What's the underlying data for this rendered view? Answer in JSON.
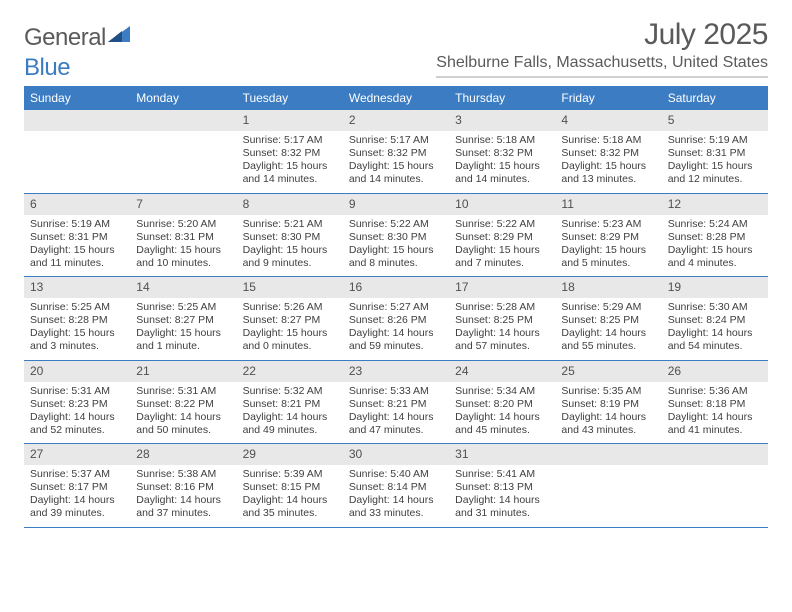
{
  "logo": {
    "word1": "General",
    "word2": "Blue"
  },
  "title": "July 2025",
  "location": "Shelburne Falls, Massachusetts, United States",
  "header_bg_color": "#3c7cc2",
  "daynum_bg_color": "#e8e8e8",
  "day_headers": [
    "Sunday",
    "Monday",
    "Tuesday",
    "Wednesday",
    "Thursday",
    "Friday",
    "Saturday"
  ],
  "weeks": [
    [
      null,
      null,
      {
        "n": "1",
        "sunrise": "Sunrise: 5:17 AM",
        "sunset": "Sunset: 8:32 PM",
        "day1": "Daylight: 15 hours",
        "day2": "and 14 minutes."
      },
      {
        "n": "2",
        "sunrise": "Sunrise: 5:17 AM",
        "sunset": "Sunset: 8:32 PM",
        "day1": "Daylight: 15 hours",
        "day2": "and 14 minutes."
      },
      {
        "n": "3",
        "sunrise": "Sunrise: 5:18 AM",
        "sunset": "Sunset: 8:32 PM",
        "day1": "Daylight: 15 hours",
        "day2": "and 14 minutes."
      },
      {
        "n": "4",
        "sunrise": "Sunrise: 5:18 AM",
        "sunset": "Sunset: 8:32 PM",
        "day1": "Daylight: 15 hours",
        "day2": "and 13 minutes."
      },
      {
        "n": "5",
        "sunrise": "Sunrise: 5:19 AM",
        "sunset": "Sunset: 8:31 PM",
        "day1": "Daylight: 15 hours",
        "day2": "and 12 minutes."
      }
    ],
    [
      {
        "n": "6",
        "sunrise": "Sunrise: 5:19 AM",
        "sunset": "Sunset: 8:31 PM",
        "day1": "Daylight: 15 hours",
        "day2": "and 11 minutes."
      },
      {
        "n": "7",
        "sunrise": "Sunrise: 5:20 AM",
        "sunset": "Sunset: 8:31 PM",
        "day1": "Daylight: 15 hours",
        "day2": "and 10 minutes."
      },
      {
        "n": "8",
        "sunrise": "Sunrise: 5:21 AM",
        "sunset": "Sunset: 8:30 PM",
        "day1": "Daylight: 15 hours",
        "day2": "and 9 minutes."
      },
      {
        "n": "9",
        "sunrise": "Sunrise: 5:22 AM",
        "sunset": "Sunset: 8:30 PM",
        "day1": "Daylight: 15 hours",
        "day2": "and 8 minutes."
      },
      {
        "n": "10",
        "sunrise": "Sunrise: 5:22 AM",
        "sunset": "Sunset: 8:29 PM",
        "day1": "Daylight: 15 hours",
        "day2": "and 7 minutes."
      },
      {
        "n": "11",
        "sunrise": "Sunrise: 5:23 AM",
        "sunset": "Sunset: 8:29 PM",
        "day1": "Daylight: 15 hours",
        "day2": "and 5 minutes."
      },
      {
        "n": "12",
        "sunrise": "Sunrise: 5:24 AM",
        "sunset": "Sunset: 8:28 PM",
        "day1": "Daylight: 15 hours",
        "day2": "and 4 minutes."
      }
    ],
    [
      {
        "n": "13",
        "sunrise": "Sunrise: 5:25 AM",
        "sunset": "Sunset: 8:28 PM",
        "day1": "Daylight: 15 hours",
        "day2": "and 3 minutes."
      },
      {
        "n": "14",
        "sunrise": "Sunrise: 5:25 AM",
        "sunset": "Sunset: 8:27 PM",
        "day1": "Daylight: 15 hours",
        "day2": "and 1 minute."
      },
      {
        "n": "15",
        "sunrise": "Sunrise: 5:26 AM",
        "sunset": "Sunset: 8:27 PM",
        "day1": "Daylight: 15 hours",
        "day2": "and 0 minutes."
      },
      {
        "n": "16",
        "sunrise": "Sunrise: 5:27 AM",
        "sunset": "Sunset: 8:26 PM",
        "day1": "Daylight: 14 hours",
        "day2": "and 59 minutes."
      },
      {
        "n": "17",
        "sunrise": "Sunrise: 5:28 AM",
        "sunset": "Sunset: 8:25 PM",
        "day1": "Daylight: 14 hours",
        "day2": "and 57 minutes."
      },
      {
        "n": "18",
        "sunrise": "Sunrise: 5:29 AM",
        "sunset": "Sunset: 8:25 PM",
        "day1": "Daylight: 14 hours",
        "day2": "and 55 minutes."
      },
      {
        "n": "19",
        "sunrise": "Sunrise: 5:30 AM",
        "sunset": "Sunset: 8:24 PM",
        "day1": "Daylight: 14 hours",
        "day2": "and 54 minutes."
      }
    ],
    [
      {
        "n": "20",
        "sunrise": "Sunrise: 5:31 AM",
        "sunset": "Sunset: 8:23 PM",
        "day1": "Daylight: 14 hours",
        "day2": "and 52 minutes."
      },
      {
        "n": "21",
        "sunrise": "Sunrise: 5:31 AM",
        "sunset": "Sunset: 8:22 PM",
        "day1": "Daylight: 14 hours",
        "day2": "and 50 minutes."
      },
      {
        "n": "22",
        "sunrise": "Sunrise: 5:32 AM",
        "sunset": "Sunset: 8:21 PM",
        "day1": "Daylight: 14 hours",
        "day2": "and 49 minutes."
      },
      {
        "n": "23",
        "sunrise": "Sunrise: 5:33 AM",
        "sunset": "Sunset: 8:21 PM",
        "day1": "Daylight: 14 hours",
        "day2": "and 47 minutes."
      },
      {
        "n": "24",
        "sunrise": "Sunrise: 5:34 AM",
        "sunset": "Sunset: 8:20 PM",
        "day1": "Daylight: 14 hours",
        "day2": "and 45 minutes."
      },
      {
        "n": "25",
        "sunrise": "Sunrise: 5:35 AM",
        "sunset": "Sunset: 8:19 PM",
        "day1": "Daylight: 14 hours",
        "day2": "and 43 minutes."
      },
      {
        "n": "26",
        "sunrise": "Sunrise: 5:36 AM",
        "sunset": "Sunset: 8:18 PM",
        "day1": "Daylight: 14 hours",
        "day2": "and 41 minutes."
      }
    ],
    [
      {
        "n": "27",
        "sunrise": "Sunrise: 5:37 AM",
        "sunset": "Sunset: 8:17 PM",
        "day1": "Daylight: 14 hours",
        "day2": "and 39 minutes."
      },
      {
        "n": "28",
        "sunrise": "Sunrise: 5:38 AM",
        "sunset": "Sunset: 8:16 PM",
        "day1": "Daylight: 14 hours",
        "day2": "and 37 minutes."
      },
      {
        "n": "29",
        "sunrise": "Sunrise: 5:39 AM",
        "sunset": "Sunset: 8:15 PM",
        "day1": "Daylight: 14 hours",
        "day2": "and 35 minutes."
      },
      {
        "n": "30",
        "sunrise": "Sunrise: 5:40 AM",
        "sunset": "Sunset: 8:14 PM",
        "day1": "Daylight: 14 hours",
        "day2": "and 33 minutes."
      },
      {
        "n": "31",
        "sunrise": "Sunrise: 5:41 AM",
        "sunset": "Sunset: 8:13 PM",
        "day1": "Daylight: 14 hours",
        "day2": "and 31 minutes."
      },
      null,
      null
    ]
  ]
}
